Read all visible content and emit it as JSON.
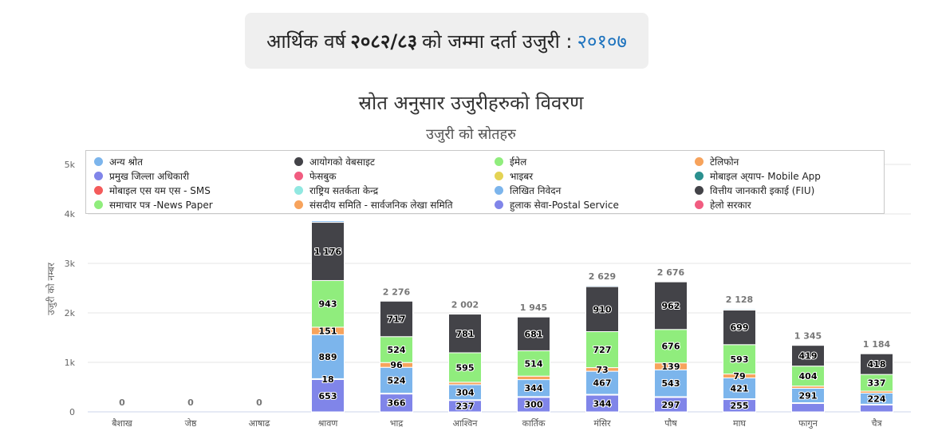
{
  "summary": {
    "prefix": "आर्थिक वर्ष",
    "fiscal_year": "२०८२/८३",
    "middle": "को जम्मा दर्ता उजुरी :",
    "total": "२०१०७",
    "total_color": "#1e73be"
  },
  "chart_data": {
    "type": "bar",
    "stacked": true,
    "title": "स्रोत अनुसार उजुरीहरुको विवरण",
    "subtitle": "उजुरी को स्रोतहरु",
    "xlabel": "",
    "ylabel": "उजुरी को नम्बर",
    "ylim": [
      0,
      5000
    ],
    "yticks": [
      0,
      1000,
      2000,
      3000,
      4000,
      5000
    ],
    "ytick_labels": [
      "0",
      "1k",
      "2k",
      "3k",
      "4k",
      "5k"
    ],
    "grid": true,
    "legend_position": "top",
    "categories": [
      "बैशाख",
      "जेष्ठ",
      "आषाढ",
      "श्रावण",
      "भाद्र",
      "आश्विन",
      "कार्तिक",
      "मंसिर",
      "पौष",
      "माघ",
      "फागुन",
      "चैत्र"
    ],
    "totals": [
      0,
      0,
      0,
      null,
      2276,
      2002,
      1945,
      2629,
      2676,
      2128,
      1345,
      1184
    ],
    "total_labels": [
      "0",
      "0",
      "0",
      "",
      "2 276",
      "2 002",
      "1 945",
      "2 629",
      "2 676",
      "2 128",
      "1 345",
      "1 184"
    ],
    "legend": [
      {
        "name": "अन्य श्रोत",
        "color": "#7cb5ec"
      },
      {
        "name": "आयोगको वेबसाइट",
        "color": "#434348"
      },
      {
        "name": "ईमेल",
        "color": "#90ed7d"
      },
      {
        "name": "टेलिफोन",
        "color": "#f7a35c"
      },
      {
        "name": "प्रमुख जिल्ला अधिकारी",
        "color": "#8085e9"
      },
      {
        "name": "फेसबुक",
        "color": "#f15c80"
      },
      {
        "name": "भाइबर",
        "color": "#e4d354"
      },
      {
        "name": "मोबाइल अ्याप- Mobile App",
        "color": "#2b908f"
      },
      {
        "name": "मोबाइल एस यम एस - SMS",
        "color": "#f45b5b"
      },
      {
        "name": "राष्ट्रिय सतर्कता केन्द्र",
        "color": "#91e8e1"
      },
      {
        "name": "लिखित निवेदन",
        "color": "#7cb5ec"
      },
      {
        "name": "वित्तीय जानकारी इकाई (FIU)",
        "color": "#434348"
      },
      {
        "name": "समाचार पत्र -News Paper",
        "color": "#90ed7d"
      },
      {
        "name": "संसदीय समिति - सार्वजनिक लेखा समिति",
        "color": "#f7a35c"
      },
      {
        "name": "हुलाक सेवा-Postal Service",
        "color": "#8085e9"
      },
      {
        "name": "हेलो सरकार",
        "color": "#f15c80"
      }
    ],
    "series": [
      {
        "name": "हुलाक सेवा-Postal Service",
        "color": "#8085e9",
        "values": [
          0,
          0,
          0,
          653,
          366,
          237,
          300,
          344,
          297,
          255,
          180,
          150
        ],
        "labels": [
          "",
          "",
          "",
          "653",
          "366",
          "237",
          "300",
          "344",
          "297",
          "255",
          "",
          ""
        ]
      },
      {
        "name": "राष्ट्रिय सतर्कता केन्द्र",
        "color": "#91e8e1",
        "values": [
          0,
          0,
          0,
          18,
          10,
          8,
          8,
          10,
          10,
          10,
          5,
          5
        ],
        "labels": [
          "",
          "",
          "",
          "18",
          "",
          "",
          "",
          "",
          "",
          "",
          "",
          ""
        ]
      },
      {
        "name": "लिखित निवेदन",
        "color": "#7cb5ec",
        "values": [
          0,
          0,
          0,
          889,
          524,
          304,
          344,
          467,
          543,
          421,
          291,
          224
        ],
        "labels": [
          "",
          "",
          "",
          "889",
          "524",
          "304",
          "344",
          "467",
          "543",
          "421",
          "291",
          "224"
        ]
      },
      {
        "name": "संसदीय समिति - सार्वजनिक लेखा समिति",
        "color": "#f7a35c",
        "values": [
          0,
          0,
          0,
          151,
          96,
          50,
          70,
          73,
          139,
          79,
          45,
          40
        ],
        "labels": [
          "",
          "",
          "",
          "151",
          "96",
          "",
          "",
          "73",
          "139",
          "79",
          "",
          ""
        ]
      },
      {
        "name": "समाचार पत्र -News Paper",
        "color": "#90ed7d",
        "values": [
          0,
          0,
          0,
          943,
          524,
          595,
          514,
          727,
          676,
          593,
          404,
          337
        ],
        "labels": [
          "",
          "",
          "",
          "943",
          "524",
          "595",
          "514",
          "727",
          "676",
          "593",
          "404",
          "337"
        ]
      },
      {
        "name": "वित्तीय जानकारी इकाई (FIU)",
        "color": "#434348",
        "values": [
          0,
          0,
          0,
          1176,
          717,
          781,
          681,
          910,
          962,
          699,
          419,
          418
        ],
        "labels": [
          "",
          "",
          "",
          "1 176",
          "717",
          "781",
          "681",
          "910",
          "962",
          "699",
          "419",
          "418"
        ]
      },
      {
        "name": "अन्य श्रोत",
        "color": "#7cb5ec",
        "values": [
          0,
          0,
          0,
          30,
          0,
          0,
          0,
          20,
          0,
          20,
          0,
          0
        ],
        "labels": [
          "",
          "",
          "",
          "",
          "",
          "",
          "",
          "",
          "",
          "",
          "",
          ""
        ]
      }
    ]
  }
}
